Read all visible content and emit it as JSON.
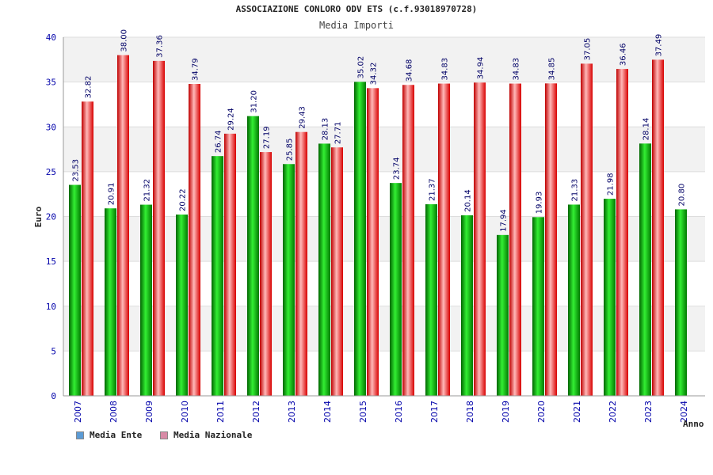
{
  "title": "ASSOCIAZIONE CONLORO ODV ETS (c.f.93018970728)",
  "subtitle": "Media Importi",
  "chart_data": {
    "type": "bar",
    "title": "ASSOCIAZIONE CONLORO ODV ETS (c.f.93018970728)",
    "subtitle": "Media Importi",
    "xlabel": "Anno",
    "ylabel": "Euro",
    "ylim": [
      0,
      40
    ],
    "yticks": [
      "0",
      "5",
      "10",
      "15",
      "20",
      "25",
      "30",
      "35",
      "40"
    ],
    "grid": true,
    "legend_position": "bottom-left",
    "categories": [
      "2007",
      "2008",
      "2009",
      "2010",
      "2011",
      "2012",
      "2013",
      "2014",
      "2015",
      "2016",
      "2017",
      "2018",
      "2019",
      "2020",
      "2021",
      "2022",
      "2023",
      "2024"
    ],
    "series": [
      {
        "name": "Media Ente",
        "color": "#00a000",
        "legend_color": "#5b9bd5",
        "values": [
          23.53,
          20.91,
          21.32,
          20.22,
          26.74,
          31.2,
          25.85,
          28.13,
          35.02,
          23.74,
          21.37,
          20.14,
          17.94,
          19.93,
          21.33,
          21.98,
          28.14,
          20.8
        ],
        "labels": [
          "23.53",
          "20.91",
          "21.32",
          "20.22",
          "26.74",
          "31.20",
          "25.85",
          "28.13",
          "35.02",
          "23.74",
          "21.37",
          "20.14",
          "17.94",
          "19.93",
          "21.33",
          "21.98",
          "28.14",
          "20.80"
        ]
      },
      {
        "name": "Media Nazionale",
        "color": "#e00000",
        "legend_color": "#d88aa6",
        "values": [
          32.82,
          38.0,
          37.36,
          34.79,
          29.24,
          27.19,
          29.43,
          27.71,
          34.32,
          34.68,
          34.83,
          34.94,
          34.83,
          34.85,
          37.05,
          36.46,
          37.49,
          null
        ],
        "labels": [
          "32.82",
          "38.00",
          "37.36",
          "34.79",
          "29.24",
          "27.19",
          "29.43",
          "27.71",
          "34.32",
          "34.68",
          "34.83",
          "34.94",
          "34.83",
          "34.85",
          "37.05",
          "36.46",
          "37.49",
          ""
        ]
      }
    ]
  }
}
